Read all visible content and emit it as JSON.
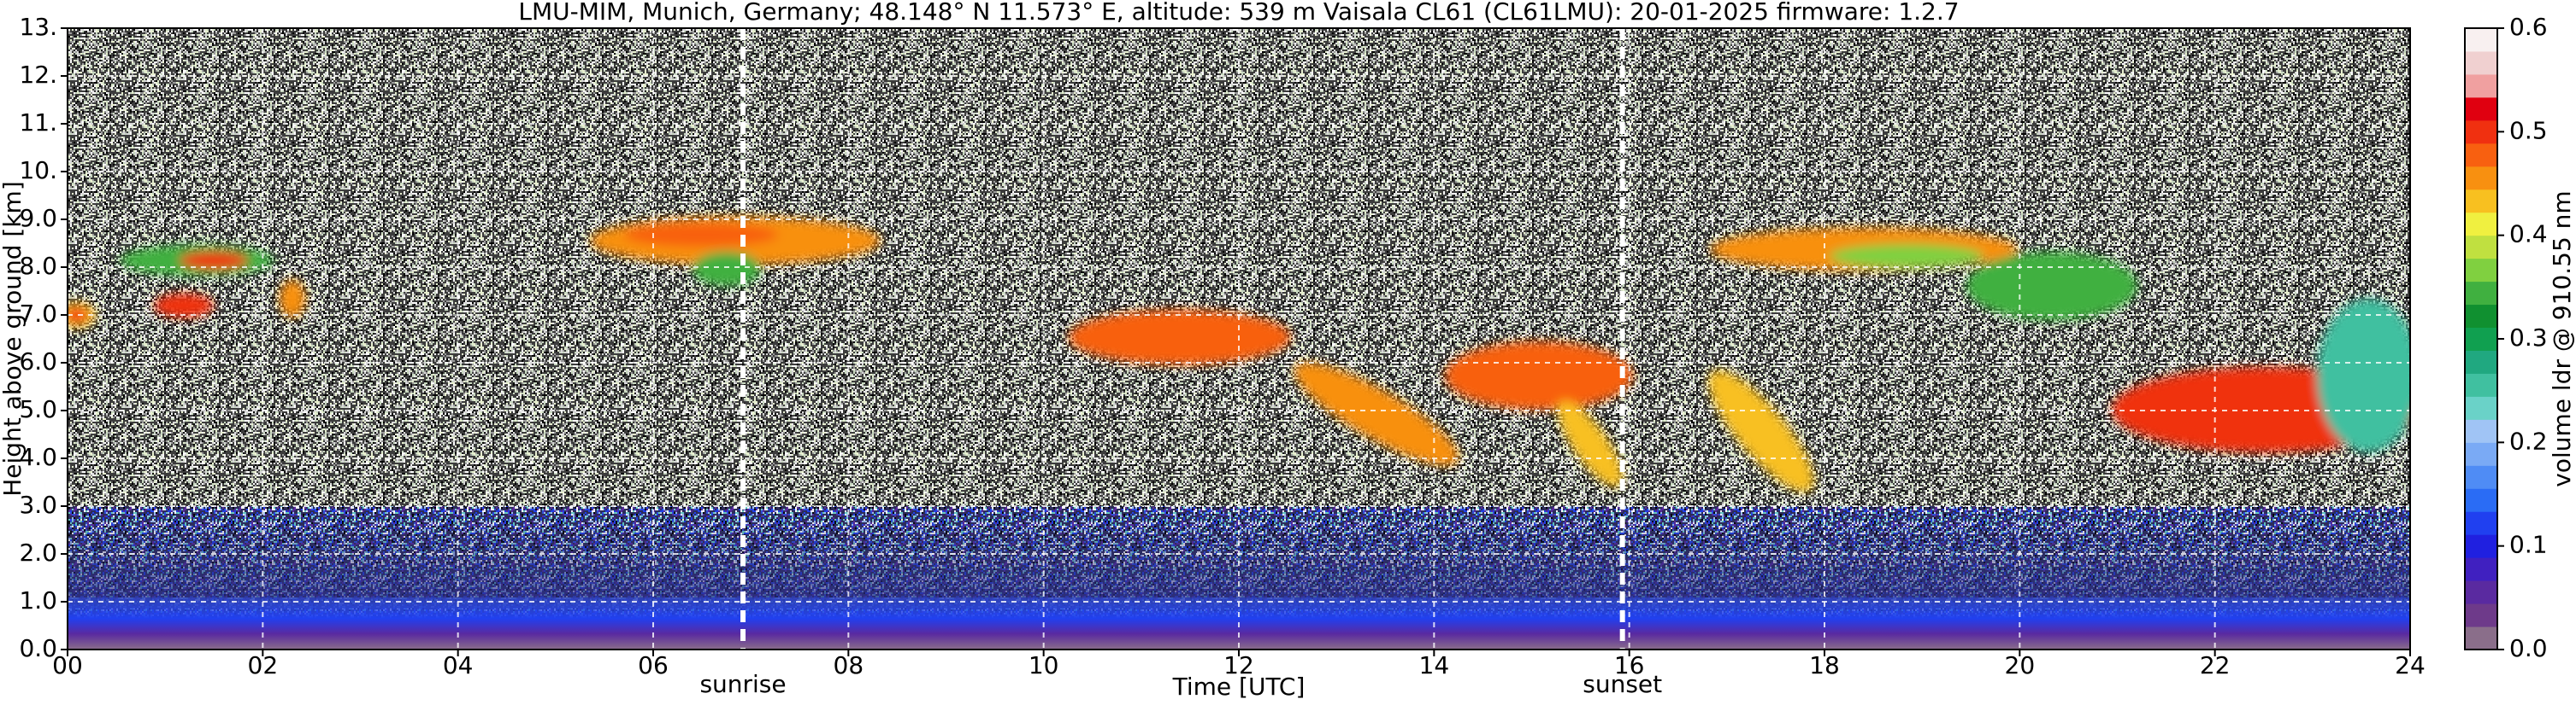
{
  "chart_data": {
    "type": "heatmap",
    "title": "LMU-MIM, Munich, Germany; 48.148° N 11.573° E, altitude: 539 m    Vaisala CL61 (CL61LMU): 20-01-2025    firmware: 1.2.7",
    "x_label": "Time [UTC]",
    "y_label": "Height above ground [km]",
    "colorbar_label": "volume ldr @ 910.55 nm",
    "xlim": [
      0,
      24
    ],
    "xticks": [
      {
        "value": 0,
        "label": "00"
      },
      {
        "value": 2,
        "label": "02"
      },
      {
        "value": 4,
        "label": "04"
      },
      {
        "value": 6,
        "label": "06"
      },
      {
        "value": 8,
        "label": "08"
      },
      {
        "value": 10,
        "label": "10"
      },
      {
        "value": 12,
        "label": "12"
      },
      {
        "value": 14,
        "label": "14"
      },
      {
        "value": 16,
        "label": "16"
      },
      {
        "value": 18,
        "label": "18"
      },
      {
        "value": 20,
        "label": "20"
      },
      {
        "value": 22,
        "label": "22"
      },
      {
        "value": 24,
        "label": "24"
      }
    ],
    "ylim": [
      0,
      13
    ],
    "yticks": [
      {
        "value": 0,
        "label": "0.0"
      },
      {
        "value": 1,
        "label": "1.0"
      },
      {
        "value": 2,
        "label": "2.0"
      },
      {
        "value": 3,
        "label": "3.0"
      },
      {
        "value": 4,
        "label": "4.0"
      },
      {
        "value": 5,
        "label": "5.0"
      },
      {
        "value": 6,
        "label": "6.0"
      },
      {
        "value": 7,
        "label": "7.0"
      },
      {
        "value": 8,
        "label": "8.0"
      },
      {
        "value": 9,
        "label": "9.0"
      },
      {
        "value": 10,
        "label": "10."
      },
      {
        "value": 11,
        "label": "11."
      },
      {
        "value": 12,
        "label": "12."
      },
      {
        "value": 13,
        "label": "13."
      }
    ],
    "clim": [
      0,
      0.6
    ],
    "cticks": [
      {
        "value": 0,
        "label": "0.0"
      },
      0.1,
      0.2,
      0.3,
      0.4,
      0.5,
      0.6
    ],
    "colormap": [
      "#8a6e8a",
      "#6e3a8a",
      "#5a2aa0",
      "#4020c0",
      "#2020e0",
      "#2040f0",
      "#2a6cf5",
      "#4f8cf5",
      "#7aaaf5",
      "#a0c4f5",
      "#6ad2c8",
      "#40c0a0",
      "#20a880",
      "#10a050",
      "#109030",
      "#40b040",
      "#80d040",
      "#c0e040",
      "#f0f040",
      "#f8c020",
      "#f89010",
      "#f86010",
      "#f03010",
      "#e00010",
      "#f0a0a0",
      "#f0d0d0",
      "#f8f0f0"
    ],
    "grid": true,
    "annotations": [
      {
        "label": "sunrise",
        "x": 6.92
      },
      {
        "label": "sunset",
        "x": 15.93
      }
    ]
  }
}
